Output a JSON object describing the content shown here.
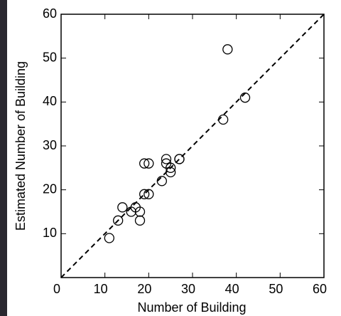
{
  "chart_data": {
    "type": "scatter",
    "x_label": "Number of Building",
    "y_label": "Estimated Number of Building",
    "x": [
      38,
      42,
      37,
      11,
      13,
      14,
      16,
      17,
      18,
      18,
      19,
      20,
      19,
      20,
      23,
      24,
      24,
      25,
      25,
      27,
      27
    ],
    "y": [
      52,
      41,
      36,
      9,
      13,
      16,
      15,
      16,
      15,
      13,
      19,
      19,
      26,
      26,
      22,
      27,
      26,
      25,
      24,
      27,
      27
    ],
    "xlim": [
      0,
      60
    ],
    "ylim": [
      0,
      60
    ],
    "xticks": [
      0,
      10,
      20,
      30,
      40,
      50,
      60
    ],
    "yticks": [
      10,
      20,
      30,
      40,
      50,
      60
    ],
    "color": "#000000"
  }
}
